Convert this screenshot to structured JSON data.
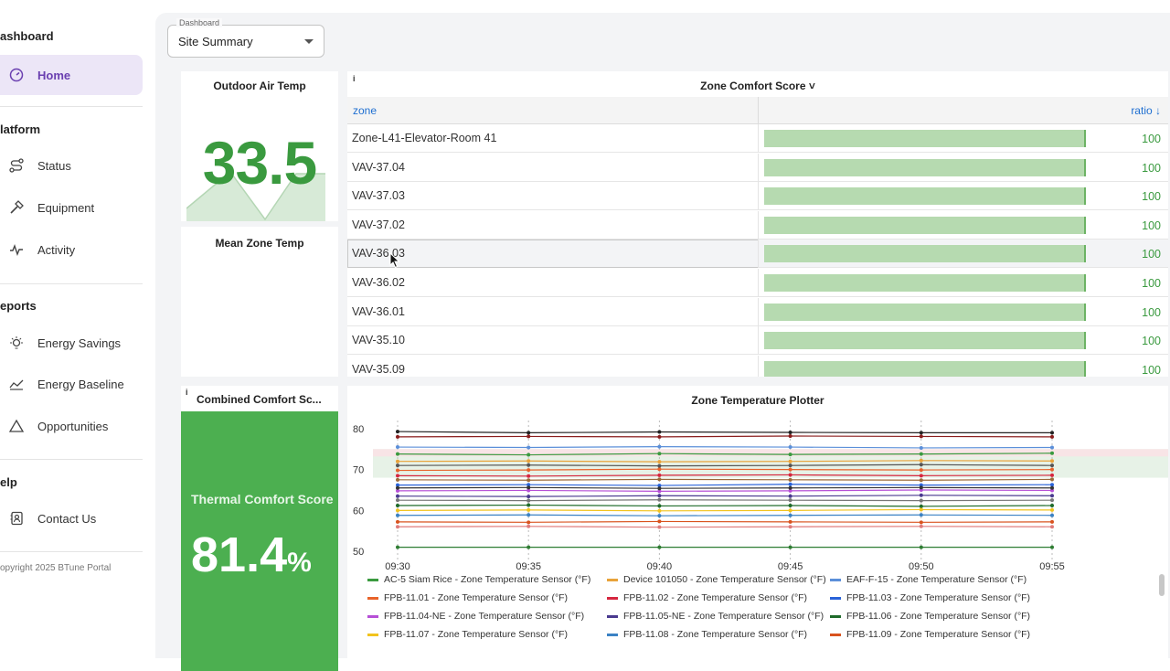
{
  "sidebar": {
    "sections": [
      {
        "title": "ashboard"
      },
      {
        "title": "latform"
      },
      {
        "title": "eports"
      },
      {
        "title": "elp"
      }
    ],
    "items": [
      {
        "label": "Home",
        "icon": "gauge-icon",
        "active": true
      },
      {
        "label": "Status",
        "icon": "route-icon"
      },
      {
        "label": "Equipment",
        "icon": "hammer-icon"
      },
      {
        "label": "Activity",
        "icon": "activity-icon"
      },
      {
        "label": "Energy Savings",
        "icon": "lightbulb-icon"
      },
      {
        "label": "Energy Baseline",
        "icon": "chart-line-icon"
      },
      {
        "label": "Opportunities",
        "icon": "triangle-icon"
      },
      {
        "label": "Contact Us",
        "icon": "contact-icon"
      }
    ],
    "copyright": "opyright 2025 BTune Portal"
  },
  "dashboard_select": {
    "legend": "Dashboard",
    "value": "Site Summary"
  },
  "outdoor_air": {
    "title": "Outdoor Air Temp",
    "value": "33.5"
  },
  "mean_zone": {
    "title": "Mean Zone Temp"
  },
  "comfort_table": {
    "info": "i",
    "title": "Zone Comfort Score ˅",
    "headers": {
      "zone": "zone",
      "ratio": "ratio ↓"
    },
    "rows": [
      {
        "zone": "Zone-L41-Elevator-Room 41",
        "ratio": "100",
        "pct": 100
      },
      {
        "zone": "VAV-37.04",
        "ratio": "100",
        "pct": 100
      },
      {
        "zone": "VAV-37.03",
        "ratio": "100",
        "pct": 100
      },
      {
        "zone": "VAV-37.02",
        "ratio": "100",
        "pct": 100
      },
      {
        "zone": "VAV-36.03",
        "ratio": "100",
        "pct": 100
      },
      {
        "zone": "VAV-36.02",
        "ratio": "100",
        "pct": 100
      },
      {
        "zone": "VAV-36.01",
        "ratio": "100",
        "pct": 100
      },
      {
        "zone": "VAV-35.10",
        "ratio": "100",
        "pct": 100
      },
      {
        "zone": "VAV-35.09",
        "ratio": "100",
        "pct": 100
      }
    ]
  },
  "combined": {
    "info": "i",
    "title": "Combined Comfort Sc...",
    "label": "Thermal Comfort Score",
    "value": "81.4",
    "unit": "%"
  },
  "chart_data": {
    "type": "line",
    "title": "Zone Temperature Plotter",
    "x": [
      "09:30",
      "09:35",
      "09:40",
      "09:45",
      "09:50",
      "09:55"
    ],
    "yticks": [
      "80",
      "70",
      "60",
      "50"
    ],
    "ylim": [
      48,
      82
    ],
    "comfort_band": [
      68,
      75
    ],
    "series": [
      {
        "name": "AC-5 Siam Rice - Zone Temperature Sensor (°F)",
        "color": "#3a9a3f",
        "values": [
          73.8,
          73.6,
          73.9,
          73.7,
          73.8,
          74.0
        ]
      },
      {
        "name": "Device 101050 - Zone Temperature Sensor (°F)",
        "color": "#e8a33a",
        "values": [
          72.0,
          72.1,
          71.9,
          72.0,
          72.2,
          72.1
        ]
      },
      {
        "name": "EAF-F-15 - Zone Temperature Sensor (°F)",
        "color": "#5b8fd9",
        "values": [
          75.5,
          75.4,
          75.6,
          75.5,
          75.3,
          75.4
        ]
      },
      {
        "name": "FPB-11.01 - Zone Temperature Sensor (°F)",
        "color": "#e8632a",
        "values": [
          69.8,
          69.9,
          70.1,
          70.0,
          69.9,
          70.0
        ]
      },
      {
        "name": "FPB-11.02 - Zone Temperature Sensor (°F)",
        "color": "#d6263f",
        "values": [
          68.5,
          68.4,
          68.6,
          68.7,
          68.5,
          68.6
        ]
      },
      {
        "name": "FPB-11.03 - Zone Temperature Sensor (°F)",
        "color": "#2962d9",
        "values": [
          66.2,
          66.3,
          66.1,
          66.4,
          66.2,
          66.3
        ]
      },
      {
        "name": "FPB-11.04-NE - Zone Temperature Sensor (°F)",
        "color": "#b64fd6",
        "values": [
          64.8,
          64.9,
          64.7,
          64.8,
          65.0,
          64.9
        ]
      },
      {
        "name": "FPB-11.05-NE - Zone Temperature Sensor (°F)",
        "color": "#4a3a8f",
        "values": [
          63.5,
          63.4,
          63.6,
          63.5,
          63.7,
          63.6
        ]
      },
      {
        "name": "FPB-11.06 - Zone Temperature Sensor (°F)",
        "color": "#1e6b2a",
        "values": [
          61.2,
          61.3,
          61.1,
          61.2,
          61.0,
          61.2
        ]
      },
      {
        "name": "FPB-11.07 - Zone Temperature Sensor (°F)",
        "color": "#f2c31d",
        "values": [
          60.0,
          60.1,
          59.9,
          60.0,
          60.2,
          60.1
        ]
      },
      {
        "name": "FPB-11.08 - Zone Temperature Sensor (°F)",
        "color": "#3b82c4",
        "values": [
          58.8,
          58.9,
          58.7,
          58.8,
          58.9,
          58.8
        ]
      },
      {
        "name": "FPB-11.09 - Zone Temperature Sensor (°F)",
        "color": "#d9531e",
        "values": [
          57.2,
          57.1,
          57.3,
          57.2,
          57.1,
          57.2
        ]
      }
    ],
    "extra_series": [
      {
        "color": "#222222",
        "values": [
          79.3,
          79.0,
          79.2,
          79.1,
          79.0,
          79.0
        ]
      },
      {
        "color": "#8a1c1c",
        "values": [
          78.0,
          78.1,
          78.0,
          78.2,
          78.1,
          78.0
        ]
      },
      {
        "color": "#555555",
        "values": [
          71.0,
          71.1,
          70.9,
          71.0,
          71.2,
          71.0
        ]
      },
      {
        "color": "#9c6b3a",
        "values": [
          67.5,
          67.4,
          67.6,
          67.5,
          67.4,
          67.6
        ]
      },
      {
        "color": "#333333",
        "values": [
          65.5,
          65.6,
          65.4,
          65.5,
          65.6,
          65.5
        ]
      },
      {
        "color": "#777777",
        "values": [
          62.5,
          62.4,
          62.6,
          62.5,
          62.4,
          62.5
        ]
      },
      {
        "color": "#e07b7b",
        "values": [
          56.0,
          56.1,
          55.9,
          56.0,
          56.1,
          56.0
        ]
      },
      {
        "color": "#2e7d32",
        "values": [
          51.0,
          51.0,
          51.0,
          51.0,
          51.0,
          51.0
        ]
      }
    ]
  }
}
